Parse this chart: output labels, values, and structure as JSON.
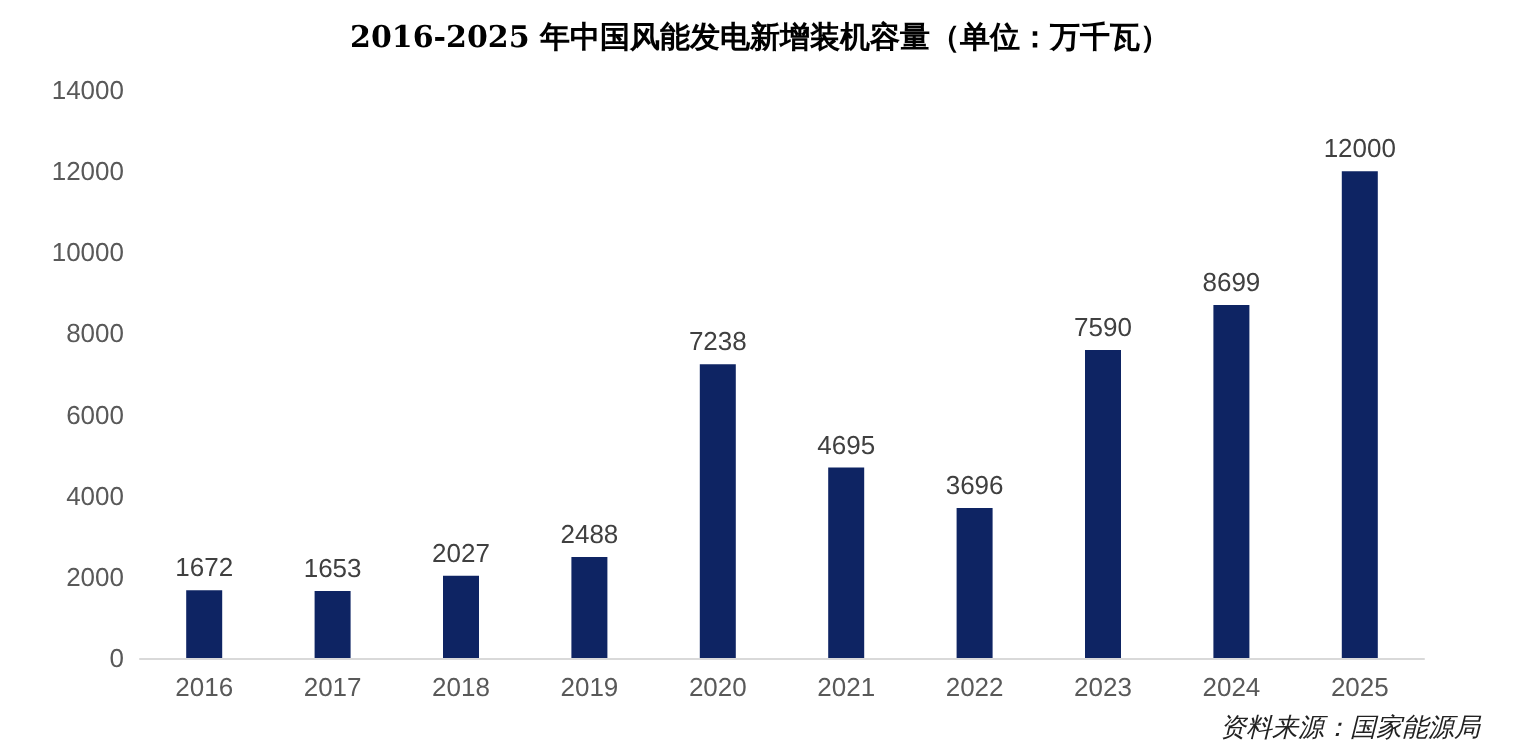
{
  "chart_data": {
    "type": "bar",
    "title": "2016-2025 年中国风能发电新增装机容量（单位：万千瓦）",
    "categories": [
      "2016",
      "2017",
      "2018",
      "2019",
      "2020",
      "2021",
      "2022",
      "2023",
      "2024",
      "2025"
    ],
    "values": [
      1672,
      1653,
      2027,
      2488,
      7238,
      4695,
      3696,
      7590,
      8699,
      12000
    ],
    "color": "#0e2463",
    "ylim": [
      0,
      14000
    ],
    "yticks": [
      0,
      2000,
      4000,
      6000,
      8000,
      10000,
      12000,
      14000
    ],
    "grid": false,
    "data_labels": true,
    "annotations": [
      "资料来源：国家能源局"
    ]
  }
}
